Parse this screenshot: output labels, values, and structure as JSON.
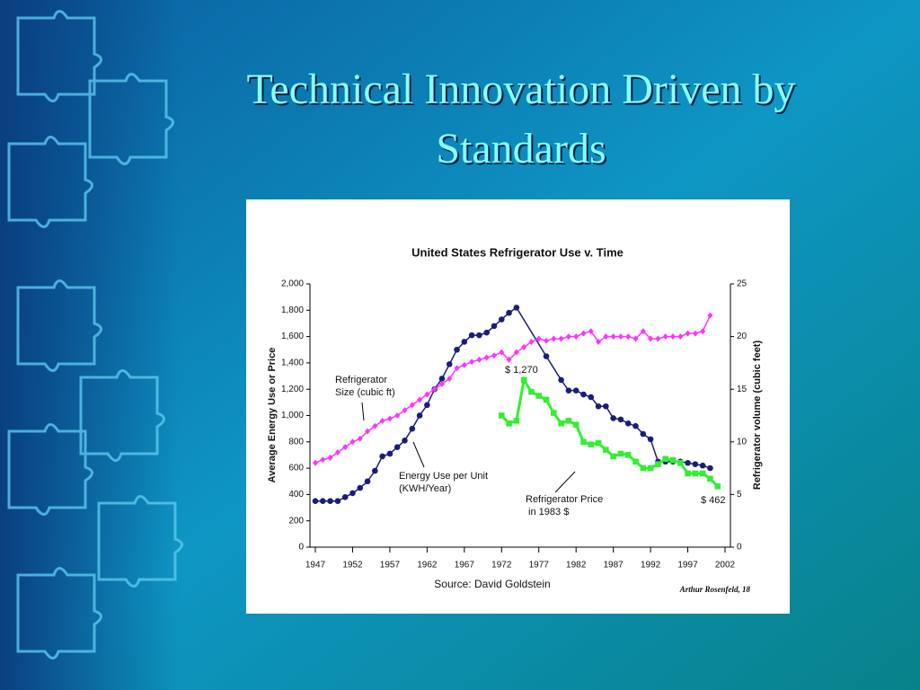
{
  "slide_title_lines": [
    "Technical Innovation Driven by",
    "Standards"
  ],
  "chart_data": {
    "type": "line",
    "title": "United States Refrigerator Use v. Time",
    "y_label": "Average Energy Use or Price",
    "y2_label": "Refrigerator volume (cubic feet)",
    "xlim": [
      1947,
      2002
    ],
    "xticks": [
      1947,
      1952,
      1957,
      1962,
      1967,
      1972,
      1977,
      1982,
      1987,
      1992,
      1997,
      2002
    ],
    "ylim": [
      0,
      2000
    ],
    "yticks": [
      0,
      200,
      400,
      600,
      800,
      {
        "value": 1000,
        "label": "1,000"
      },
      {
        "value": 1200,
        "label": "1,200"
      },
      {
        "value": 1400,
        "label": "1,400"
      },
      {
        "value": 1600,
        "label": "1,600"
      },
      {
        "value": 1800,
        "label": "1,800"
      },
      {
        "value": 2000,
        "label": "2,000"
      }
    ],
    "y2lim": [
      0,
      25
    ],
    "y2ticks": [
      0,
      5,
      10,
      15,
      20,
      25
    ],
    "series": [
      {
        "color": "#1c1c7c",
        "marker": "circle",
        "x": [
          1947,
          1948,
          1949,
          1950,
          1951,
          1952,
          1953,
          1954,
          1955,
          1956,
          1957,
          1958,
          1959,
          1960,
          1961,
          1962,
          1963,
          1964,
          1965,
          1966,
          1967,
          1968,
          1969,
          1970,
          1971,
          1972,
          1973,
          1974,
          1978,
          1980,
          1981,
          1982,
          1983,
          1984,
          1985,
          1986,
          1987,
          1988,
          1989,
          1990,
          1991,
          1992,
          1993,
          1994,
          1995,
          1996,
          1997,
          1998,
          1999,
          2000
        ],
        "values": [
          350,
          350,
          350,
          350,
          380,
          410,
          450,
          500,
          580,
          690,
          710,
          760,
          810,
          900,
          1000,
          1080,
          1200,
          1280,
          1390,
          1500,
          1560,
          1610,
          1610,
          1630,
          1680,
          1730,
          1780,
          1820,
          1450,
          1270,
          1190,
          1190,
          1160,
          1140,
          1070,
          1070,
          980,
          970,
          940,
          920,
          860,
          820,
          650,
          650,
          650,
          650,
          640,
          630,
          620,
          600
        ]
      },
      {
        "color": "#ff33ff",
        "marker": "diamond",
        "axis": "y2",
        "x": [
          1947,
          1948,
          1949,
          1950,
          1951,
          1952,
          1953,
          1954,
          1955,
          1956,
          1957,
          1958,
          1959,
          1960,
          1961,
          1962,
          1963,
          1964,
          1965,
          1966,
          1967,
          1968,
          1969,
          1970,
          1971,
          1972,
          1973,
          1974,
          1975,
          1976,
          1977,
          1978,
          1979,
          1980,
          1981,
          1982,
          1983,
          1984,
          1985,
          1986,
          1987,
          1988,
          1989,
          1990,
          1991,
          1992,
          1993,
          1994,
          1995,
          1996,
          1997,
          1998,
          1999,
          2000
        ],
        "values": [
          8.0,
          8.3,
          8.5,
          9.0,
          9.5,
          10.0,
          10.3,
          11.0,
          11.5,
          12.0,
          12.2,
          12.5,
          13.0,
          13.5,
          14.0,
          14.5,
          15.0,
          15.5,
          16.0,
          17.0,
          17.3,
          17.6,
          17.8,
          18.0,
          18.2,
          18.5,
          17.8,
          18.5,
          19.0,
          19.5,
          19.8,
          19.6,
          19.8,
          19.8,
          20.0,
          20.0,
          20.3,
          20.5,
          19.5,
          20.0,
          20.0,
          20.0,
          20.0,
          19.8,
          20.5,
          19.8,
          19.8,
          20.0,
          20.0,
          20.0,
          20.3,
          20.3,
          20.5,
          22.0
        ]
      },
      {
        "color": "#33ee33",
        "marker": "square",
        "x": [
          1972,
          1973,
          1974,
          1975,
          1976,
          1977,
          1978,
          1979,
          1980,
          1981,
          1982,
          1983,
          1984,
          1985,
          1986,
          1987,
          1988,
          1989,
          1990,
          1991,
          1992,
          1993,
          1994,
          1995,
          1996,
          1997,
          1998,
          1999,
          2000,
          2001
        ],
        "values": [
          1000,
          940,
          960,
          1270,
          1180,
          1150,
          1120,
          1020,
          940,
          960,
          930,
          800,
          780,
          790,
          740,
          690,
          710,
          700,
          650,
          600,
          600,
          630,
          670,
          660,
          640,
          560,
          560,
          560,
          520,
          462
        ]
      }
    ],
    "annotations": [
      {
        "lines": [
          "Refrigerator",
          "Size (cubic ft)"
        ]
      },
      {
        "lines": [
          "Energy Use per Unit",
          "(KWH/Year)"
        ]
      },
      {
        "lines": [
          "Refrigerator Price",
          " in 1983 $"
        ]
      },
      {
        "lines": [
          "$ 1,270"
        ]
      },
      {
        "lines": [
          "$ 462"
        ]
      }
    ],
    "source": "Source: David Goldstein",
    "credit": "Arthur Rosenfeld, 18"
  }
}
